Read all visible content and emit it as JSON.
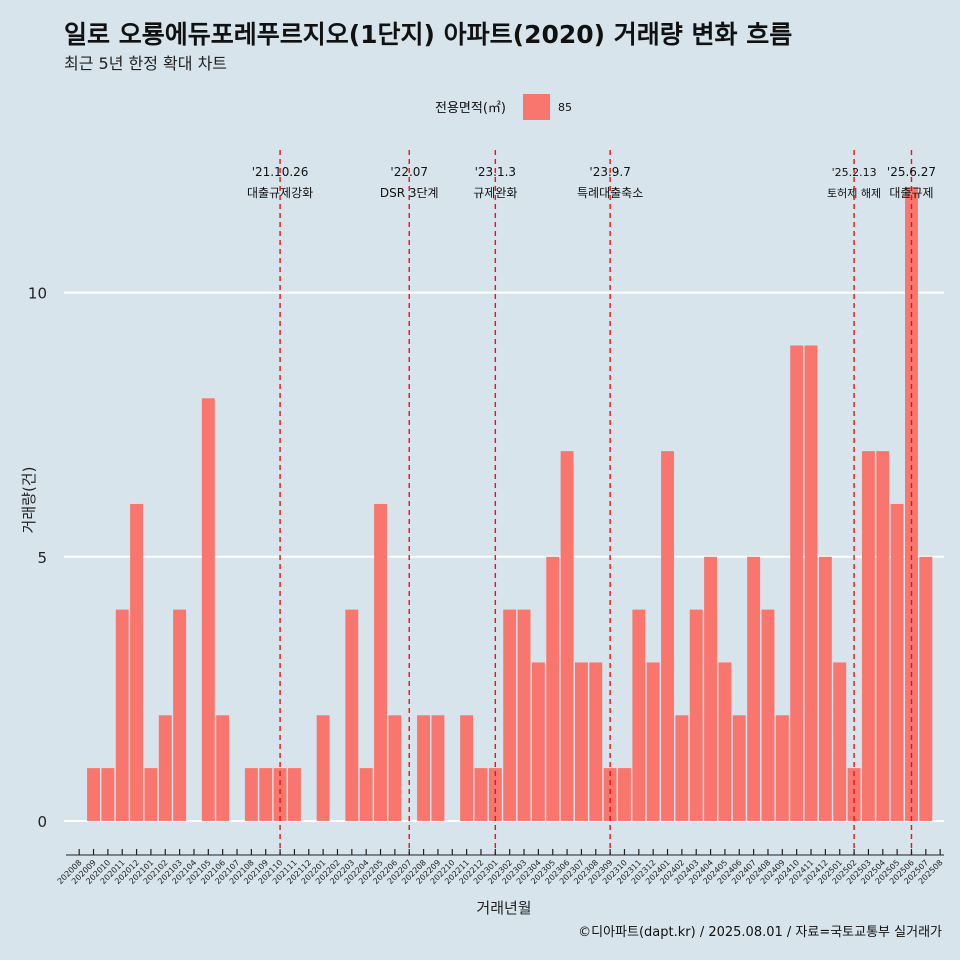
{
  "chart_data": {
    "type": "bar",
    "title": "일로 오룡에듀포레푸르지오(1단지) 아파트(2020) 거래량 변화 흐름",
    "subtitle": "최근 5년 한정 확대 차트",
    "xlabel": "거래년월",
    "ylabel": "거래량(건)",
    "ylim": [
      -0.55,
      12.7
    ],
    "yticks": [
      0,
      5,
      10
    ],
    "legend": {
      "title": "전용면적(㎡)",
      "entries": [
        "85"
      ],
      "position": "top"
    },
    "series": [
      {
        "name": "85",
        "color": "#f8766d"
      }
    ],
    "categories": [
      "202008",
      "202009",
      "202010",
      "202011",
      "202012",
      "202101",
      "202102",
      "202103",
      "202104",
      "202105",
      "202106",
      "202107",
      "202108",
      "202109",
      "202110",
      "202111",
      "202112",
      "202201",
      "202202",
      "202203",
      "202204",
      "202205",
      "202206",
      "202207",
      "202208",
      "202209",
      "202210",
      "202211",
      "202212",
      "202301",
      "202302",
      "202303",
      "202304",
      "202305",
      "202306",
      "202307",
      "202308",
      "202309",
      "202310",
      "202311",
      "202312",
      "202401",
      "202402",
      "202403",
      "202404",
      "202405",
      "202406",
      "202407",
      "202408",
      "202409",
      "202410",
      "202411",
      "202412",
      "202501",
      "202502",
      "202503",
      "202504",
      "202505",
      "202506",
      "202507",
      "202508"
    ],
    "values": [
      0,
      1,
      1,
      4,
      6,
      1,
      2,
      4,
      0,
      8,
      2,
      0,
      1,
      1,
      1,
      1,
      0,
      2,
      0,
      4,
      1,
      6,
      2,
      0,
      2,
      2,
      0,
      2,
      1,
      1,
      4,
      4,
      3,
      5,
      7,
      3,
      3,
      1,
      1,
      4,
      3,
      7,
      2,
      4,
      5,
      3,
      2,
      5,
      4,
      2,
      9,
      9,
      5,
      3,
      1,
      7,
      7,
      6,
      12,
      5,
      0
    ],
    "events": [
      {
        "date_label": "'21.10.26",
        "desc": "대출규제강화",
        "index": 14
      },
      {
        "date_label": "'22.07",
        "desc": "DSR 3단계",
        "index": 23
      },
      {
        "date_label": "'23.1.3",
        "desc": "규제완화",
        "index": 29
      },
      {
        "date_label": "'23.9.7",
        "desc": "특례대출축소",
        "index": 37
      },
      {
        "date_label": "'25.2.13",
        "desc": "토허제 해제",
        "index": 54
      },
      {
        "date_label": "'25.6.27",
        "desc": "대출규제",
        "index": 58
      }
    ],
    "grid": "horizontal",
    "caption": "©디아파트(dapt.kr) / 2025.08.01 / 자료=국토교통부 실거래가"
  }
}
